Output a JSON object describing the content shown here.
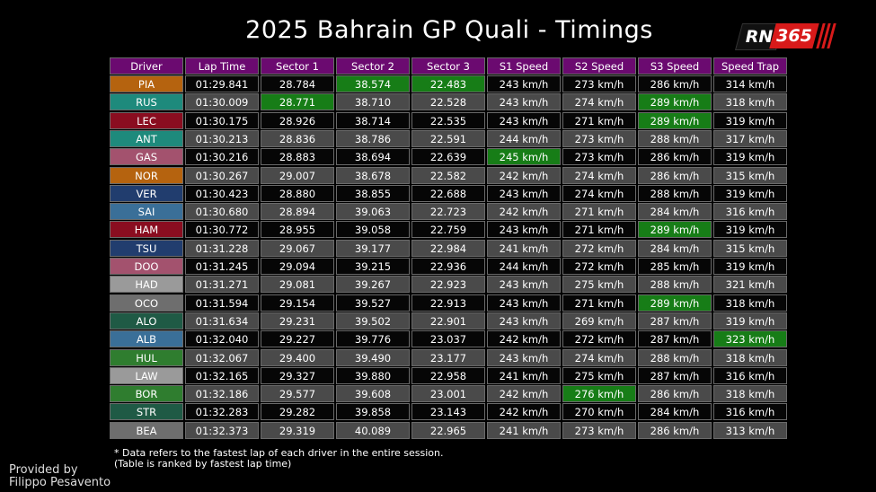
{
  "header": {
    "title": "2025 Bahrain GP Quali - Timings",
    "logo": [
      "RN",
      "365"
    ]
  },
  "table": {
    "columns": [
      "Driver",
      "Lap Time",
      "Sector 1",
      "Sector 2",
      "Sector 3",
      "S1 Speed",
      "S2 Speed",
      "S3 Speed",
      "Speed Trap"
    ],
    "header_color": "#6b0a70",
    "row_colors": [
      "#060606",
      "#4a4a4a"
    ],
    "best_color": "#177d17",
    "rows": [
      {
        "color": "#b5630f",
        "best": [
          3,
          4
        ],
        "cells": [
          "PIA",
          "01:29.841",
          "28.784",
          "38.574",
          "22.483",
          "243 km/h",
          "273 km/h",
          "286 km/h",
          "314 km/h"
        ]
      },
      {
        "color": "#1e8a7c",
        "best": [
          2,
          7
        ],
        "cells": [
          "RUS",
          "01:30.009",
          "28.771",
          "38.710",
          "22.528",
          "243 km/h",
          "274 km/h",
          "289 km/h",
          "318 km/h"
        ]
      },
      {
        "color": "#8a0d20",
        "best": [
          7
        ],
        "cells": [
          "LEC",
          "01:30.175",
          "28.926",
          "38.714",
          "22.535",
          "243 km/h",
          "271 km/h",
          "289 km/h",
          "319 km/h"
        ]
      },
      {
        "color": "#1e8a7c",
        "best": [],
        "cells": [
          "ANT",
          "01:30.213",
          "28.836",
          "38.786",
          "22.591",
          "244 km/h",
          "273 km/h",
          "288 km/h",
          "317 km/h"
        ]
      },
      {
        "color": "#a3526e",
        "best": [
          5
        ],
        "cells": [
          "GAS",
          "01:30.216",
          "28.883",
          "38.694",
          "22.639",
          "245 km/h",
          "273 km/h",
          "286 km/h",
          "319 km/h"
        ]
      },
      {
        "color": "#b5630f",
        "best": [],
        "cells": [
          "NOR",
          "01:30.267",
          "29.007",
          "38.678",
          "22.582",
          "242 km/h",
          "274 km/h",
          "286 km/h",
          "315 km/h"
        ]
      },
      {
        "color": "#213d6e",
        "best": [],
        "cells": [
          "VER",
          "01:30.423",
          "28.880",
          "38.855",
          "22.688",
          "243 km/h",
          "274 km/h",
          "288 km/h",
          "319 km/h"
        ]
      },
      {
        "color": "#3a6f98",
        "best": [],
        "cells": [
          "SAI",
          "01:30.680",
          "28.894",
          "39.063",
          "22.723",
          "242 km/h",
          "271 km/h",
          "284 km/h",
          "316 km/h"
        ]
      },
      {
        "color": "#8a0d20",
        "best": [
          7
        ],
        "cells": [
          "HAM",
          "01:30.772",
          "28.955",
          "39.058",
          "22.759",
          "243 km/h",
          "271 km/h",
          "289 km/h",
          "319 km/h"
        ]
      },
      {
        "color": "#213d6e",
        "best": [],
        "cells": [
          "TSU",
          "01:31.228",
          "29.067",
          "39.177",
          "22.984",
          "241 km/h",
          "272 km/h",
          "284 km/h",
          "315 km/h"
        ]
      },
      {
        "color": "#a3526e",
        "best": [],
        "cells": [
          "DOO",
          "01:31.245",
          "29.094",
          "39.215",
          "22.936",
          "244 km/h",
          "272 km/h",
          "285 km/h",
          "319 km/h"
        ]
      },
      {
        "color": "#9a9a9a",
        "best": [],
        "cells": [
          "HAD",
          "01:31.271",
          "29.081",
          "39.267",
          "22.923",
          "243 km/h",
          "275 km/h",
          "288 km/h",
          "321 km/h"
        ]
      },
      {
        "color": "#6e6e6e",
        "best": [
          7
        ],
        "cells": [
          "OCO",
          "01:31.594",
          "29.154",
          "39.527",
          "22.913",
          "243 km/h",
          "271 km/h",
          "289 km/h",
          "318 km/h"
        ]
      },
      {
        "color": "#1f5a45",
        "best": [],
        "cells": [
          "ALO",
          "01:31.634",
          "29.231",
          "39.502",
          "22.901",
          "243 km/h",
          "269 km/h",
          "287 km/h",
          "319 km/h"
        ]
      },
      {
        "color": "#3a6f98",
        "best": [
          8
        ],
        "cells": [
          "ALB",
          "01:32.040",
          "29.227",
          "39.776",
          "23.037",
          "242 km/h",
          "272 km/h",
          "287 km/h",
          "323 km/h"
        ]
      },
      {
        "color": "#2f7d2f",
        "best": [],
        "cells": [
          "HUL",
          "01:32.067",
          "29.400",
          "39.490",
          "23.177",
          "243 km/h",
          "274 km/h",
          "288 km/h",
          "318 km/h"
        ]
      },
      {
        "color": "#9a9a9a",
        "best": [],
        "cells": [
          "LAW",
          "01:32.165",
          "29.327",
          "39.880",
          "22.958",
          "241 km/h",
          "275 km/h",
          "287 km/h",
          "316 km/h"
        ]
      },
      {
        "color": "#2f7d2f",
        "best": [
          6
        ],
        "cells": [
          "BOR",
          "01:32.186",
          "29.577",
          "39.608",
          "23.001",
          "242 km/h",
          "276 km/h",
          "286 km/h",
          "318 km/h"
        ]
      },
      {
        "color": "#1f5a45",
        "best": [],
        "cells": [
          "STR",
          "01:32.283",
          "29.282",
          "39.858",
          "23.143",
          "242 km/h",
          "270 km/h",
          "284 km/h",
          "316 km/h"
        ]
      },
      {
        "color": "#6e6e6e",
        "best": [],
        "cells": [
          "BEA",
          "01:32.373",
          "29.319",
          "40.089",
          "22.965",
          "241 km/h",
          "273 km/h",
          "286 km/h",
          "313 km/h"
        ]
      }
    ]
  },
  "footnotes": [
    "* Data refers to the fastest lap of each driver in the entire session.",
    "(Table is ranked by fastest lap time)"
  ],
  "credit": [
    "Provided by",
    "Filippo Pesavento"
  ]
}
